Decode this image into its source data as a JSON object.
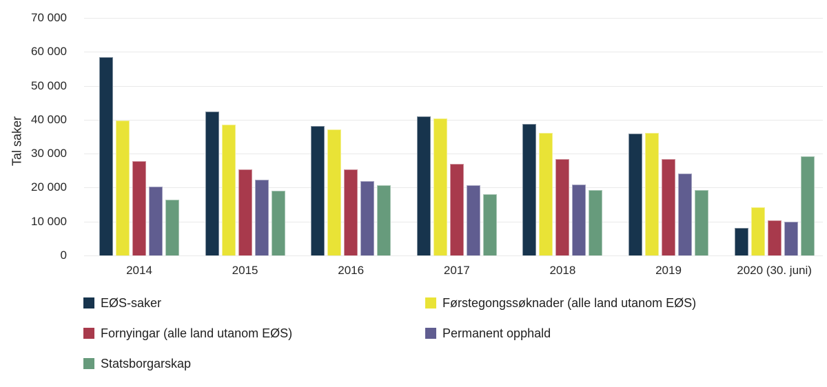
{
  "chart_data": {
    "type": "bar",
    "title": "",
    "xlabel": "",
    "ylabel": "Tal saker",
    "ylim": [
      0,
      70000
    ],
    "ytick_step": 10000,
    "ytick_labels": [
      "0",
      "10 000",
      "20 000",
      "30 000",
      "40 000",
      "50 000",
      "60 000",
      "70 000"
    ],
    "grid": true,
    "legend_position": "bottom",
    "categories": [
      "2014",
      "2015",
      "2016",
      "2017",
      "2018",
      "2019",
      "2020 (30. juni)"
    ],
    "series": [
      {
        "name": "EØS-saker",
        "color": "#17344d",
        "values": [
          58400,
          42500,
          38200,
          40900,
          38700,
          36000,
          8200
        ]
      },
      {
        "name": "Førstegongssøknader (alle land utanom EØS)",
        "color": "#e9e336",
        "values": [
          39800,
          38600,
          37100,
          40300,
          36100,
          36100,
          14300
        ]
      },
      {
        "name": "Fornyingar (alle land utanom EØS)",
        "color": "#a83a4c",
        "values": [
          27900,
          25300,
          25300,
          26900,
          28500,
          28500,
          10400
        ]
      },
      {
        "name": "Permanent opphald",
        "color": "#605d90",
        "values": [
          20300,
          22400,
          21900,
          20800,
          20900,
          24100,
          9900
        ]
      },
      {
        "name": "Statsborgarskap",
        "color": "#679b7c",
        "values": [
          16400,
          19100,
          20800,
          18100,
          19300,
          19200,
          29200
        ]
      }
    ]
  },
  "colors": {
    "gridline": "#e9e9e9",
    "text": "#262626",
    "background": "#ffffff"
  }
}
